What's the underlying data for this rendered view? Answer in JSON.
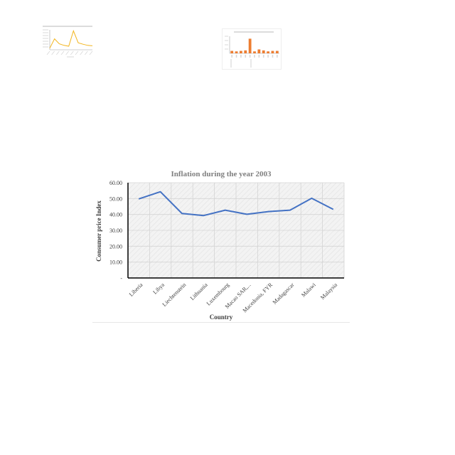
{
  "chart_data": [
    {
      "type": "line",
      "role": "thumbnail",
      "title": "",
      "categories": [
        "",
        "",
        "",
        "",
        "",
        "",
        "",
        "",
        "",
        ""
      ],
      "values": [
        8,
        55,
        30,
        22,
        18,
        95,
        35,
        28,
        22,
        20
      ],
      "ylim": [
        0,
        100
      ],
      "color": "#f2b51e"
    },
    {
      "type": "bar",
      "role": "thumbnail",
      "title": "",
      "categories": [
        "",
        "",
        "",
        "",
        "",
        "",
        "",
        "",
        "",
        "",
        ""
      ],
      "values": [
        5,
        4,
        5,
        6,
        30,
        4,
        8,
        6,
        4,
        5,
        5
      ],
      "ylim": [
        0,
        35
      ],
      "color": "#ed7d31"
    },
    {
      "type": "line",
      "role": "main",
      "title": "Inflation during the year 2003",
      "xlabel": "Country",
      "ylabel": "Consumer price Index",
      "categories": [
        "Liberia",
        "Libya",
        "Liechtenstein",
        "Lithuania",
        "Luxembourg",
        "Macao SAR,...",
        "Macedonia, FYR",
        "Madagascar",
        "Malawi",
        "Malaysia"
      ],
      "values": [
        49.8,
        54.3,
        40.6,
        39.3,
        42.7,
        40.1,
        41.8,
        42.7,
        50.2,
        43.2
      ],
      "yticks": [
        "-",
        "10.00",
        "20.00",
        "30.00",
        "40.00",
        "50.00",
        "60.00"
      ],
      "ylim": [
        0,
        60
      ],
      "grid": true,
      "color": "#4472c4"
    }
  ]
}
